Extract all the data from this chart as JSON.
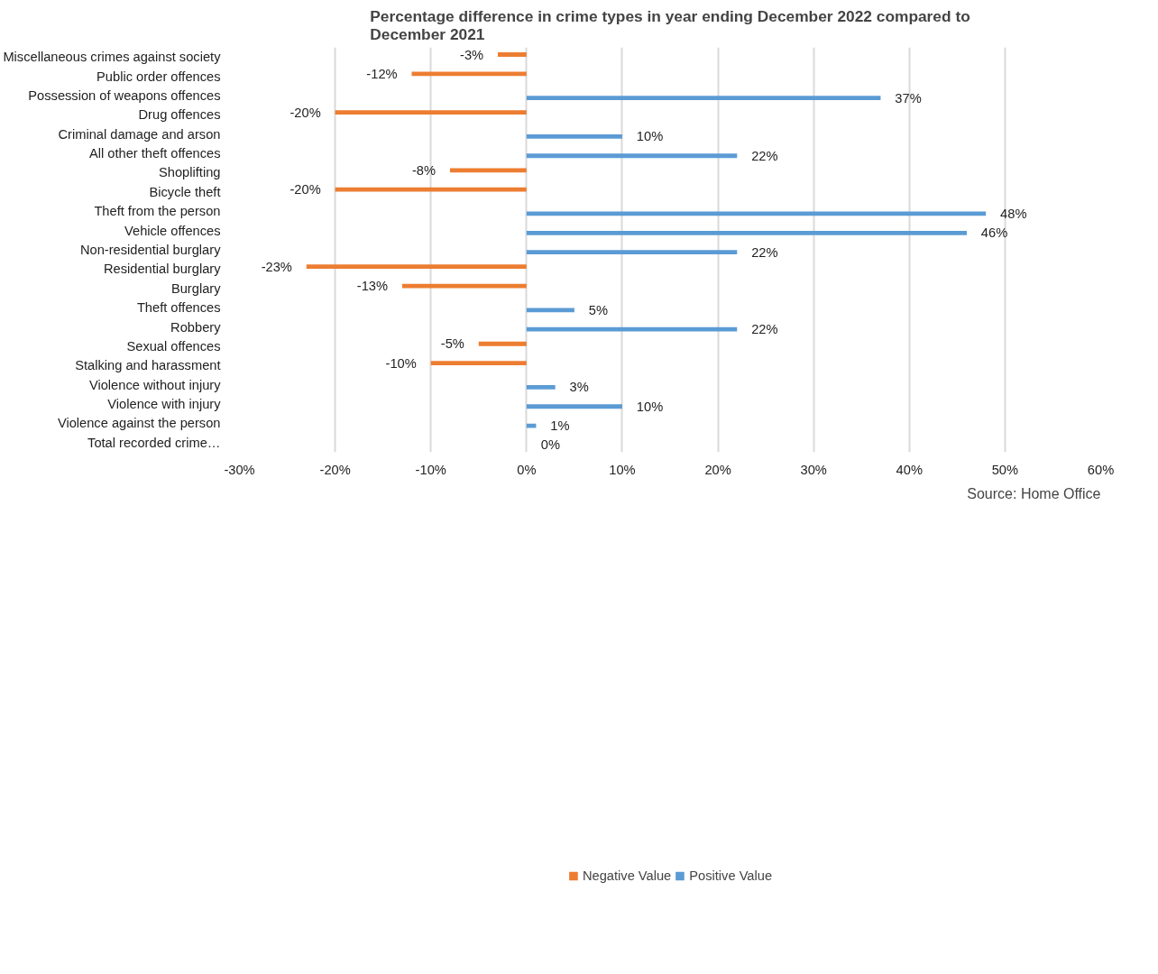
{
  "chart_data": {
    "type": "bar",
    "orientation": "horizontal",
    "title": "Percentage difference in crime types in year ending December 2022 compared to December 2021",
    "categories": [
      "Miscellaneous crimes against society",
      "Public order offences",
      "Possession of weapons offences",
      "Drug offences",
      "Criminal damage and arson",
      "All other theft offences",
      "Shoplifting",
      "Bicycle theft",
      "Theft from the person",
      "Vehicle offences",
      "Non-residential burglary",
      "Residential burglary",
      "Burglary",
      "Theft offences",
      "Robbery",
      "Sexual offences",
      "Stalking and harassment",
      "Violence without injury",
      "Violence with injury",
      "Violence against the person",
      "Total recorded crime…"
    ],
    "series": [
      {
        "name": "Negative Value",
        "color": "#ed7d31",
        "values": [
          -3,
          -12,
          null,
          -20,
          null,
          null,
          -8,
          -20,
          null,
          null,
          null,
          -23,
          -13,
          null,
          null,
          -5,
          -10,
          null,
          null,
          null,
          null
        ],
        "value_labels": [
          "-3%",
          "-12%",
          null,
          "-20%",
          null,
          null,
          "-8%",
          "-20%",
          null,
          null,
          null,
          "-23%",
          "-13%",
          null,
          null,
          "-5%",
          "-10%",
          null,
          null,
          null,
          null
        ]
      },
      {
        "name": "Positive Value",
        "color": "#5b9bd5",
        "values": [
          null,
          null,
          37,
          null,
          10,
          22,
          null,
          null,
          48,
          46,
          22,
          null,
          null,
          5,
          22,
          null,
          null,
          3,
          10,
          1,
          0
        ],
        "value_labels": [
          null,
          null,
          "37%",
          null,
          "10%",
          "22%",
          null,
          null,
          "48%",
          "46%",
          "22%",
          null,
          null,
          "5%",
          "22%",
          null,
          null,
          "3%",
          "10%",
          "1%",
          "0%"
        ]
      }
    ],
    "xlim": [
      -30,
      60
    ],
    "xticks": [
      {
        "value": -30,
        "label": "-30%"
      },
      {
        "value": -20,
        "label": "-20%"
      },
      {
        "value": -10,
        "label": "-10%"
      },
      {
        "value": 0,
        "label": "0%"
      },
      {
        "value": 10,
        "label": "10%"
      },
      {
        "value": 20,
        "label": "20%"
      },
      {
        "value": 30,
        "label": "30%"
      },
      {
        "value": 40,
        "label": "40%"
      },
      {
        "value": 50,
        "label": "50%"
      },
      {
        "value": 60,
        "label": "60%"
      }
    ],
    "grid": "x",
    "legend": "bottom",
    "annotations": [
      "Source: Home Office"
    ]
  }
}
